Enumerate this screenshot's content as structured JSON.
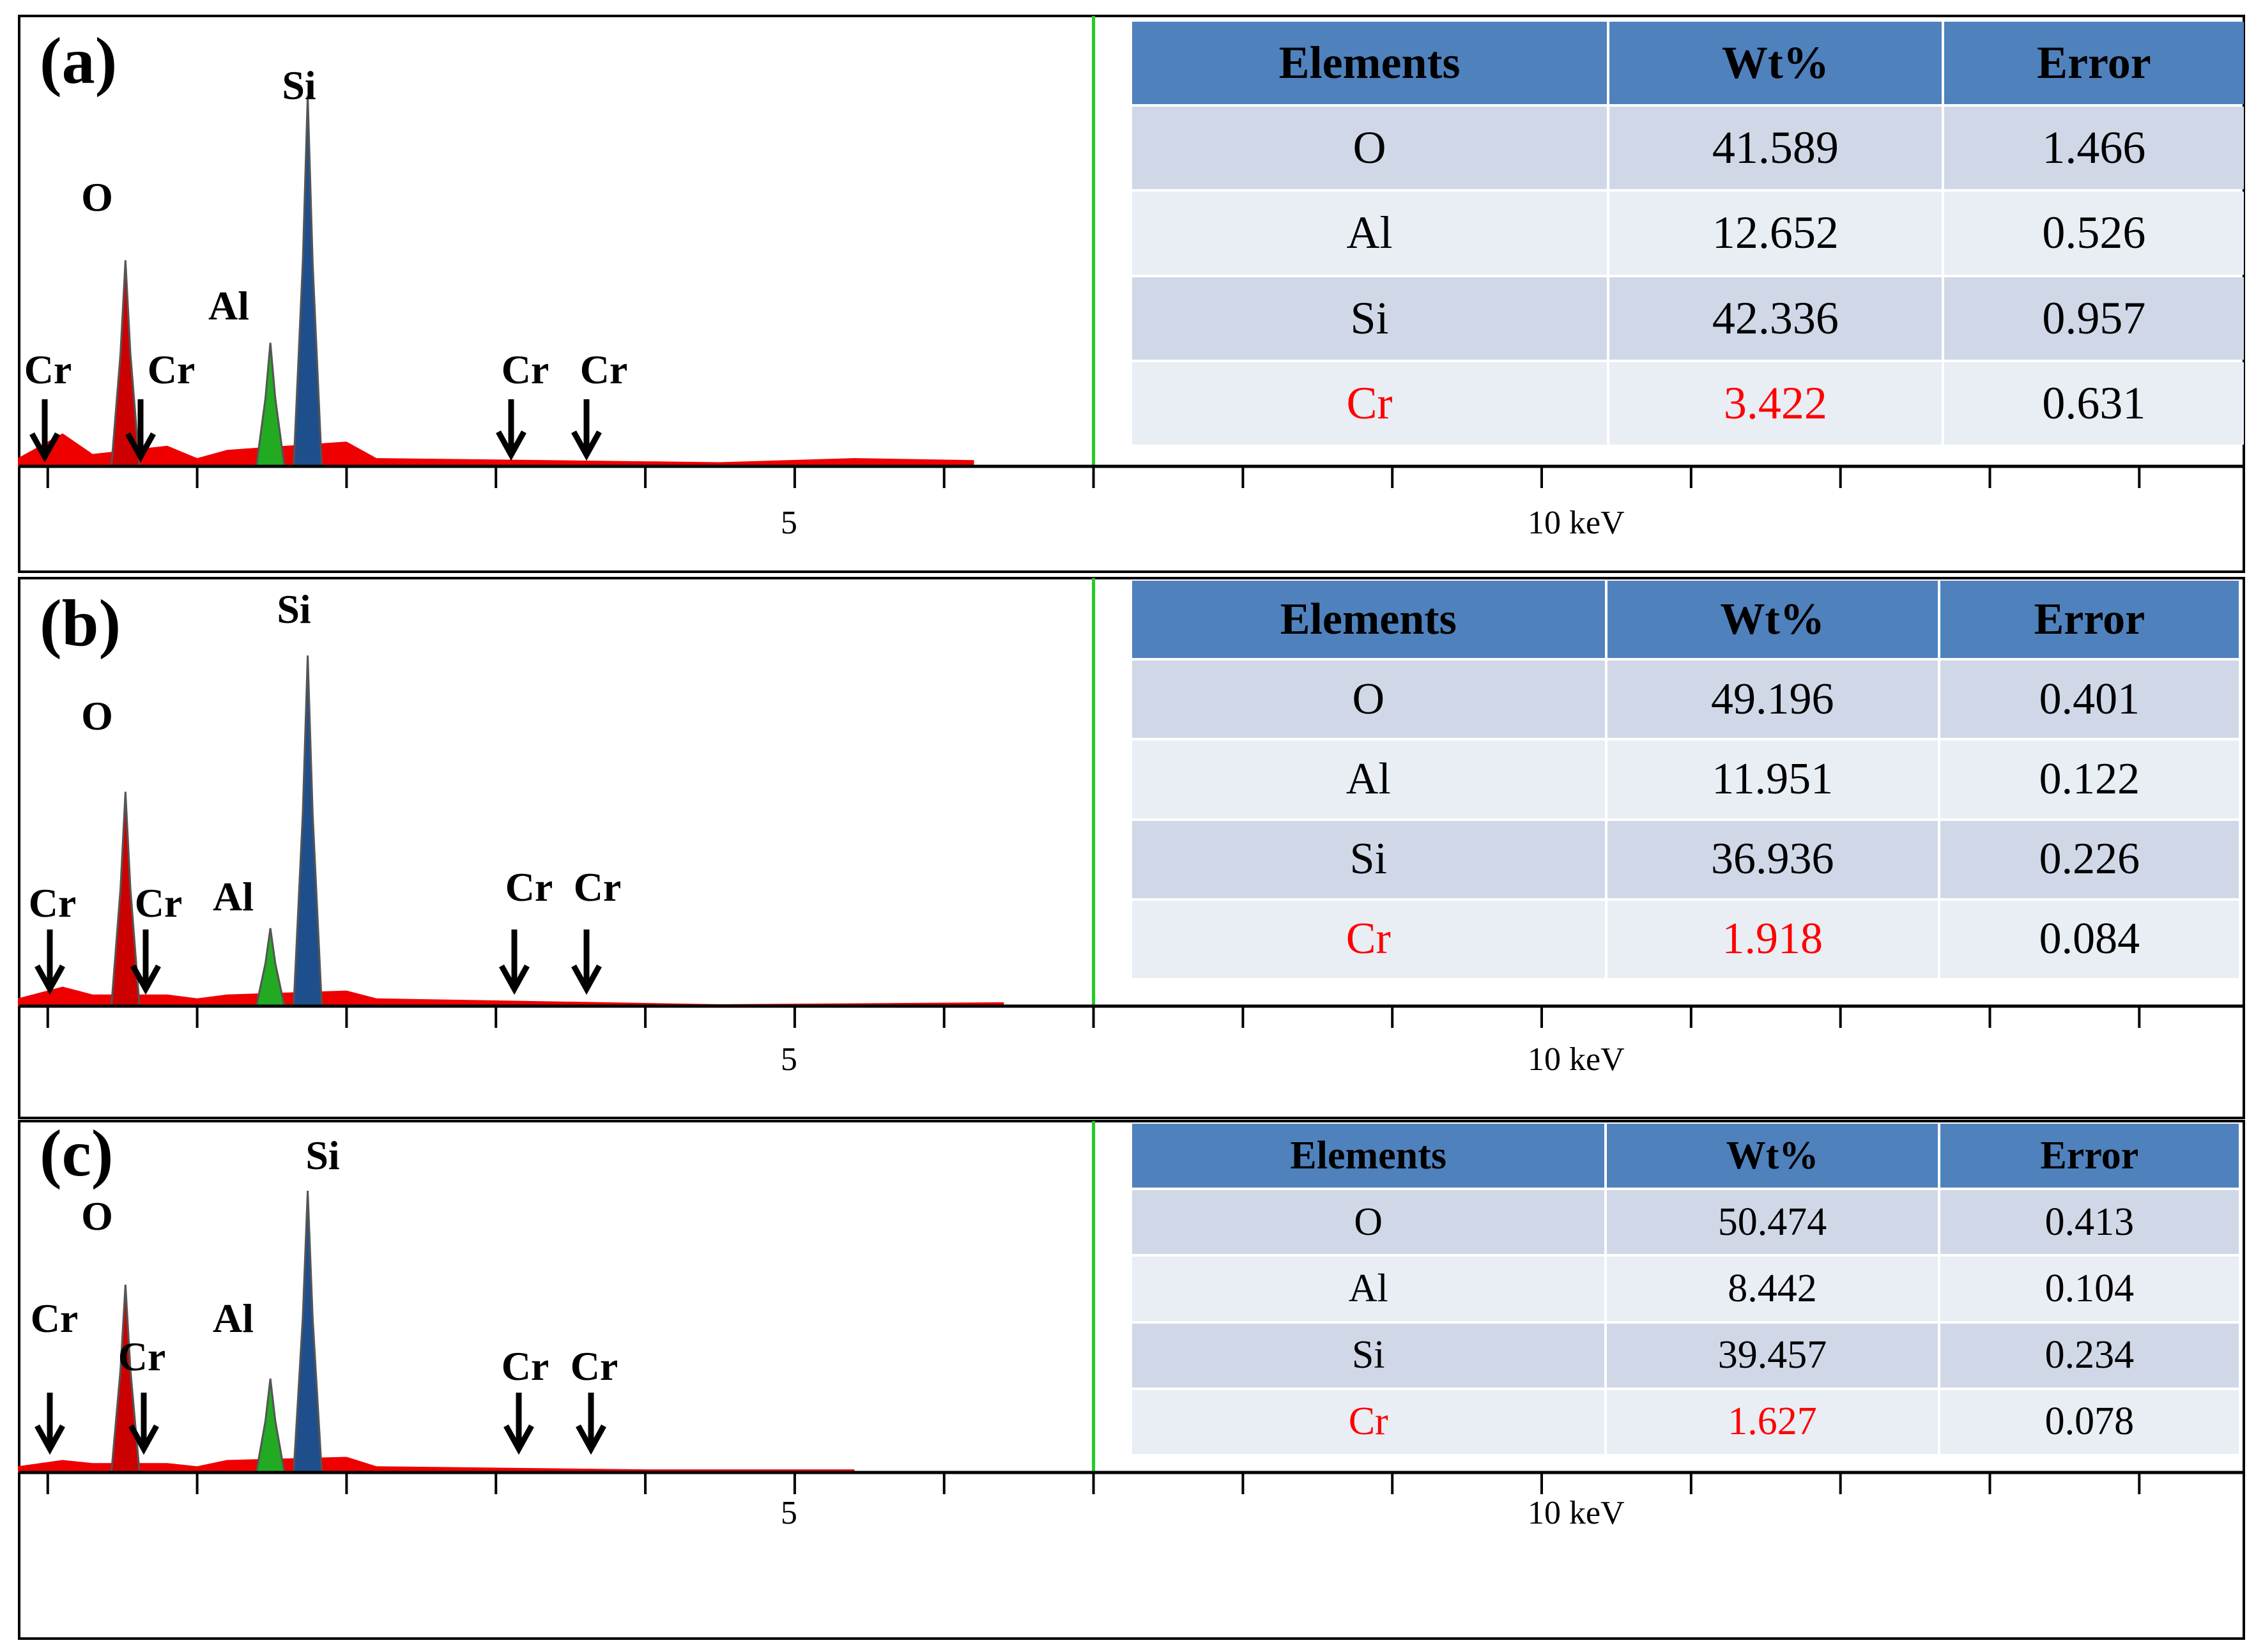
{
  "panels": [
    {
      "label": "(a)",
      "table": {
        "headers": [
          "Elements",
          "Wt%",
          "Error"
        ],
        "rows": [
          {
            "element": "O",
            "wt": "41.589",
            "error": "1.466",
            "highlight": false
          },
          {
            "element": "Al",
            "wt": "12.652",
            "error": "0.526",
            "highlight": false
          },
          {
            "element": "Si",
            "wt": "42.336",
            "error": "0.957",
            "highlight": false
          },
          {
            "element": "Cr",
            "wt": "3.422",
            "error": "0.631",
            "highlight": true
          }
        ]
      },
      "peaks": [
        {
          "element": "Cr",
          "energy": 0.15,
          "arrow": true
        },
        {
          "element": "O",
          "energy": 0.52,
          "arrow": false
        },
        {
          "element": "Cr",
          "energy": 0.8,
          "arrow": true
        },
        {
          "element": "Al",
          "energy": 1.49,
          "arrow": false
        },
        {
          "element": "Si",
          "energy": 1.74,
          "arrow": false
        },
        {
          "element": "Cr",
          "energy": 3.3,
          "arrow": true
        },
        {
          "element": "Cr",
          "energy": 3.8,
          "arrow": true
        }
      ]
    },
    {
      "label": "(b)",
      "table": {
        "headers": [
          "Elements",
          "Wt%",
          "Error"
        ],
        "rows": [
          {
            "element": "O",
            "wt": "49.196",
            "error": "0.401",
            "highlight": false
          },
          {
            "element": "Al",
            "wt": "11.951",
            "error": "0.122",
            "highlight": false
          },
          {
            "element": "Si",
            "wt": "36.936",
            "error": "0.226",
            "highlight": false
          },
          {
            "element": "Cr",
            "wt": "1.918",
            "error": "0.084",
            "highlight": true
          }
        ]
      },
      "peaks": [
        {
          "element": "Cr",
          "energy": 0.2,
          "arrow": true
        },
        {
          "element": "O",
          "energy": 0.52,
          "arrow": false
        },
        {
          "element": "Cr",
          "energy": 0.85,
          "arrow": true
        },
        {
          "element": "Al",
          "energy": 1.49,
          "arrow": false
        },
        {
          "element": "Si",
          "energy": 1.74,
          "arrow": false
        },
        {
          "element": "Cr",
          "energy": 3.3,
          "arrow": true
        },
        {
          "element": "Cr",
          "energy": 3.8,
          "arrow": true
        }
      ]
    },
    {
      "label": "(c)",
      "table": {
        "headers": [
          "Elements",
          "Wt%",
          "Error"
        ],
        "rows": [
          {
            "element": "O",
            "wt": "50.474",
            "error": "0.413",
            "highlight": false
          },
          {
            "element": "Al",
            "wt": "8.442",
            "error": "0.104",
            "highlight": false
          },
          {
            "element": "Si",
            "wt": "39.457",
            "error": "0.234",
            "highlight": false
          },
          {
            "element": "Cr",
            "wt": "1.627",
            "error": "0.078",
            "highlight": true
          }
        ]
      },
      "peaks": [
        {
          "element": "Cr",
          "energy": 0.2,
          "arrow": true
        },
        {
          "element": "O",
          "energy": 0.52,
          "arrow": false
        },
        {
          "element": "Cr",
          "energy": 0.85,
          "arrow": true
        },
        {
          "element": "Al",
          "energy": 1.49,
          "arrow": false
        },
        {
          "element": "Si",
          "energy": 1.74,
          "arrow": false
        },
        {
          "element": "Cr",
          "energy": 3.3,
          "arrow": true
        },
        {
          "element": "Cr",
          "energy": 3.8,
          "arrow": true
        }
      ]
    }
  ],
  "axis": {
    "tick_labels": [
      {
        "value": 5,
        "text": "5"
      },
      {
        "value": 10,
        "text": "10 keV"
      }
    ]
  },
  "chart_data": [
    {
      "type": "bar",
      "title": "(a)",
      "xlabel": "keV",
      "xlim": [
        -0.2,
        14.7
      ],
      "marker_line_keV": 7.0,
      "series": [
        {
          "name": "O",
          "color": "#cc0000",
          "peak_keV": 0.52,
          "relative_height": 0.5
        },
        {
          "name": "Al",
          "color": "#22aa22",
          "peak_keV": 1.49,
          "relative_height": 0.3
        },
        {
          "name": "Si",
          "color": "#1f4e8c",
          "peak_keV": 1.74,
          "relative_height": 0.9
        },
        {
          "name": "background",
          "color": "#ee0000",
          "points": [
            [
              -0.2,
              0.02
            ],
            [
              0.1,
              0.08
            ],
            [
              0.3,
              0.03
            ],
            [
              0.8,
              0.05
            ],
            [
              1.0,
              0.02
            ],
            [
              1.2,
              0.04
            ],
            [
              2.0,
              0.06
            ],
            [
              2.2,
              0.02
            ],
            [
              4.5,
              0.01
            ],
            [
              5.4,
              0.02
            ],
            [
              6.2,
              0.015
            ]
          ]
        }
      ],
      "table": [
        [
          "O",
          41.589,
          1.466
        ],
        [
          "Al",
          12.652,
          0.526
        ],
        [
          "Si",
          42.336,
          0.957
        ],
        [
          "Cr",
          3.422,
          0.631
        ]
      ]
    },
    {
      "type": "bar",
      "title": "(b)",
      "xlabel": "keV",
      "xlim": [
        -0.2,
        14.7
      ],
      "marker_line_keV": 7.0,
      "series": [
        {
          "name": "O",
          "color": "#cc0000",
          "peak_keV": 0.52,
          "relative_height": 0.55
        },
        {
          "name": "Al",
          "color": "#22aa22",
          "peak_keV": 1.49,
          "relative_height": 0.2
        },
        {
          "name": "Si",
          "color": "#1f4e8c",
          "peak_keV": 1.74,
          "relative_height": 0.9
        },
        {
          "name": "background",
          "color": "#ee0000",
          "points": [
            [
              -0.2,
              0.02
            ],
            [
              0.1,
              0.05
            ],
            [
              0.3,
              0.03
            ],
            [
              0.8,
              0.03
            ],
            [
              1.0,
              0.02
            ],
            [
              1.2,
              0.03
            ],
            [
              2.0,
              0.04
            ],
            [
              2.2,
              0.02
            ],
            [
              4.5,
              0.005
            ],
            [
              6.4,
              0.01
            ]
          ]
        }
      ],
      "table": [
        [
          "O",
          49.196,
          0.401
        ],
        [
          "Al",
          11.951,
          0.122
        ],
        [
          "Si",
          36.936,
          0.226
        ],
        [
          "Cr",
          1.918,
          0.084
        ]
      ]
    },
    {
      "type": "bar",
      "title": "(c)",
      "xlabel": "keV",
      "xlim": [
        -0.2,
        14.7
      ],
      "marker_line_keV": 7.0,
      "series": [
        {
          "name": "O",
          "color": "#cc0000",
          "peak_keV": 0.52,
          "relative_height": 0.6
        },
        {
          "name": "Al",
          "color": "#22aa22",
          "peak_keV": 1.49,
          "relative_height": 0.3
        },
        {
          "name": "Si",
          "color": "#1f4e8c",
          "peak_keV": 1.74,
          "relative_height": 0.9
        },
        {
          "name": "background",
          "color": "#ee0000",
          "points": [
            [
              -0.2,
              0.02
            ],
            [
              0.1,
              0.04
            ],
            [
              0.3,
              0.03
            ],
            [
              0.8,
              0.03
            ],
            [
              1.0,
              0.02
            ],
            [
              1.2,
              0.04
            ],
            [
              2.0,
              0.05
            ],
            [
              2.2,
              0.02
            ],
            [
              4.0,
              0.01
            ],
            [
              5.4,
              0.01
            ]
          ]
        }
      ],
      "table": [
        [
          "O",
          50.474,
          0.413
        ],
        [
          "Al",
          8.442,
          0.104
        ],
        [
          "Si",
          39.457,
          0.234
        ],
        [
          "Cr",
          1.627,
          0.078
        ]
      ]
    }
  ]
}
